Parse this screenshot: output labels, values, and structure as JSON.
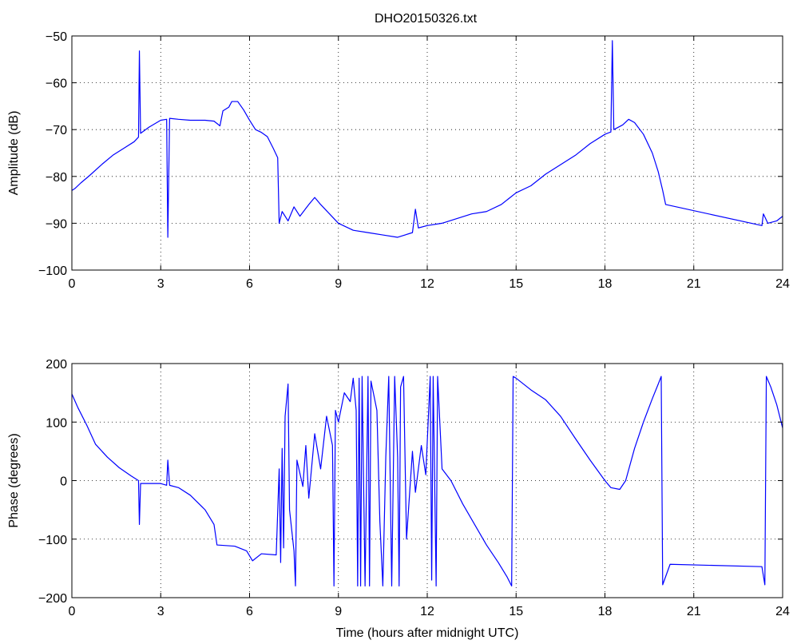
{
  "figure": {
    "title": "DHO20150326.txt",
    "line_color": "#0000ff"
  },
  "chart_data": [
    {
      "type": "line",
      "title": "DHO20150326.txt",
      "xlabel": "",
      "ylabel": "Amplitude (dB)",
      "xlim": [
        0,
        24
      ],
      "ylim": [
        -100,
        -50
      ],
      "xticks": [
        0,
        3,
        6,
        9,
        12,
        15,
        18,
        21,
        24
      ],
      "yticks": [
        -100,
        -90,
        -80,
        -70,
        -60,
        -50
      ],
      "grid": true,
      "series": [
        {
          "points": [
            [
              0,
              -83.0
            ],
            [
              0.1,
              -82.6
            ],
            [
              0.3,
              -81.4
            ],
            [
              0.6,
              -79.8
            ],
            [
              1.0,
              -77.5
            ],
            [
              1.4,
              -75.4
            ],
            [
              1.8,
              -73.8
            ],
            [
              2.1,
              -72.6
            ],
            [
              2.25,
              -71.6
            ],
            [
              2.28,
              -53.2
            ],
            [
              2.32,
              -70.8
            ],
            [
              2.6,
              -69.5
            ],
            [
              3.0,
              -68.0
            ],
            [
              3.2,
              -67.8
            ],
            [
              3.24,
              -93.0
            ],
            [
              3.3,
              -67.6
            ],
            [
              3.6,
              -67.8
            ],
            [
              4.0,
              -68.0
            ],
            [
              4.5,
              -68.0
            ],
            [
              4.8,
              -68.2
            ],
            [
              5.0,
              -69.2
            ],
            [
              5.1,
              -66.0
            ],
            [
              5.3,
              -65.2
            ],
            [
              5.4,
              -64.0
            ],
            [
              5.6,
              -64.0
            ],
            [
              5.8,
              -65.8
            ],
            [
              6.0,
              -68.0
            ],
            [
              6.2,
              -70.0
            ],
            [
              6.4,
              -70.6
            ],
            [
              6.6,
              -71.5
            ],
            [
              6.8,
              -74.0
            ],
            [
              6.95,
              -76.0
            ],
            [
              7.0,
              -90.0
            ],
            [
              7.1,
              -87.5
            ],
            [
              7.3,
              -89.5
            ],
            [
              7.5,
              -86.5
            ],
            [
              7.7,
              -88.5
            ],
            [
              8.0,
              -86.0
            ],
            [
              8.2,
              -84.5
            ],
            [
              8.4,
              -86.0
            ],
            [
              8.7,
              -88.0
            ],
            [
              9.0,
              -90.0
            ],
            [
              9.5,
              -91.5
            ],
            [
              10.0,
              -92.0
            ],
            [
              10.5,
              -92.5
            ],
            [
              11.0,
              -93.0
            ],
            [
              11.5,
              -92.0
            ],
            [
              11.6,
              -87.0
            ],
            [
              11.7,
              -91.0
            ],
            [
              12.0,
              -90.5
            ],
            [
              12.5,
              -90.0
            ],
            [
              13.0,
              -89.0
            ],
            [
              13.5,
              -88.0
            ],
            [
              14.0,
              -87.5
            ],
            [
              14.5,
              -86.0
            ],
            [
              15.0,
              -83.5
            ],
            [
              15.5,
              -82.0
            ],
            [
              16.0,
              -79.5
            ],
            [
              16.5,
              -77.5
            ],
            [
              17.0,
              -75.5
            ],
            [
              17.5,
              -73.0
            ],
            [
              18.0,
              -71.0
            ],
            [
              18.2,
              -70.5
            ],
            [
              18.25,
              -51.0
            ],
            [
              18.3,
              -70.0
            ],
            [
              18.6,
              -69.0
            ],
            [
              18.8,
              -67.8
            ],
            [
              19.0,
              -68.5
            ],
            [
              19.3,
              -71.0
            ],
            [
              19.6,
              -75.0
            ],
            [
              19.8,
              -79.0
            ],
            [
              19.95,
              -83.0
            ],
            [
              20.05,
              -86.0
            ],
            [
              23.3,
              -90.5
            ],
            [
              23.35,
              -88.0
            ],
            [
              23.5,
              -90.0
            ],
            [
              23.8,
              -89.5
            ],
            [
              24.0,
              -88.5
            ]
          ]
        }
      ]
    },
    {
      "type": "line",
      "title": "",
      "xlabel": "Time (hours after midnight UTC)",
      "ylabel": "Phase (degrees)",
      "xlim": [
        0,
        24
      ],
      "ylim": [
        -200,
        200
      ],
      "xticks": [
        0,
        3,
        6,
        9,
        12,
        15,
        18,
        21,
        24
      ],
      "yticks": [
        -200,
        -100,
        0,
        100,
        200
      ],
      "grid": true,
      "series": [
        {
          "points": [
            [
              0,
              148
            ],
            [
              0.2,
              125
            ],
            [
              0.5,
              95
            ],
            [
              0.8,
              62
            ],
            [
              1.2,
              40
            ],
            [
              1.6,
              22
            ],
            [
              2.0,
              8
            ],
            [
              2.25,
              0
            ],
            [
              2.28,
              -75
            ],
            [
              2.32,
              -5
            ],
            [
              2.6,
              -5
            ],
            [
              3.0,
              -5
            ],
            [
              3.2,
              -8
            ],
            [
              3.24,
              35
            ],
            [
              3.3,
              -8
            ],
            [
              3.6,
              -12
            ],
            [
              4.0,
              -25
            ],
            [
              4.5,
              -50
            ],
            [
              4.8,
              -75
            ],
            [
              4.9,
              -110
            ],
            [
              5.5,
              -112
            ],
            [
              5.9,
              -120
            ],
            [
              6.1,
              -137
            ],
            [
              6.4,
              -125
            ],
            [
              6.9,
              -127
            ],
            [
              7.0,
              20
            ],
            [
              7.05,
              -140
            ],
            [
              7.1,
              55
            ],
            [
              7.15,
              -115
            ],
            [
              7.2,
              110
            ],
            [
              7.3,
              165
            ],
            [
              7.35,
              -50
            ],
            [
              7.5,
              -120
            ],
            [
              7.55,
              -180
            ],
            [
              7.6,
              35
            ],
            [
              7.8,
              -10
            ],
            [
              7.9,
              60
            ],
            [
              8.0,
              -30
            ],
            [
              8.2,
              80
            ],
            [
              8.4,
              20
            ],
            [
              8.6,
              110
            ],
            [
              8.8,
              60
            ],
            [
              8.85,
              -180
            ],
            [
              8.9,
              120
            ],
            [
              9.0,
              100
            ],
            [
              9.2,
              150
            ],
            [
              9.4,
              135
            ],
            [
              9.5,
              175
            ],
            [
              9.6,
              120
            ],
            [
              9.65,
              -180
            ],
            [
              9.7,
              175
            ],
            [
              9.75,
              -180
            ],
            [
              9.8,
              178
            ],
            [
              9.9,
              -180
            ],
            [
              10.0,
              178
            ],
            [
              10.05,
              -180
            ],
            [
              10.1,
              170
            ],
            [
              10.3,
              120
            ],
            [
              10.4,
              -70
            ],
            [
              10.5,
              -180
            ],
            [
              10.6,
              40
            ],
            [
              10.7,
              178
            ],
            [
              10.8,
              -180
            ],
            [
              10.9,
              178
            ],
            [
              11.0,
              40
            ],
            [
              11.05,
              -180
            ],
            [
              11.1,
              160
            ],
            [
              11.2,
              178
            ],
            [
              11.3,
              -100
            ],
            [
              11.5,
              50
            ],
            [
              11.6,
              -20
            ],
            [
              11.8,
              60
            ],
            [
              11.95,
              10
            ],
            [
              12.1,
              178
            ],
            [
              12.15,
              -170
            ],
            [
              12.2,
              178
            ],
            [
              12.3,
              -180
            ],
            [
              12.35,
              178
            ],
            [
              12.5,
              20
            ],
            [
              12.8,
              0
            ],
            [
              13.2,
              -40
            ],
            [
              13.6,
              -75
            ],
            [
              14.0,
              -110
            ],
            [
              14.4,
              -140
            ],
            [
              14.7,
              -165
            ],
            [
              14.85,
              -180
            ],
            [
              14.9,
              178
            ],
            [
              15.0,
              175
            ],
            [
              15.5,
              155
            ],
            [
              16.0,
              138
            ],
            [
              16.5,
              110
            ],
            [
              17.0,
              72
            ],
            [
              17.5,
              35
            ],
            [
              18.0,
              0
            ],
            [
              18.2,
              -12
            ],
            [
              18.5,
              -15
            ],
            [
              18.7,
              0
            ],
            [
              19.0,
              55
            ],
            [
              19.3,
              100
            ],
            [
              19.6,
              140
            ],
            [
              19.8,
              165
            ],
            [
              19.9,
              178
            ],
            [
              19.95,
              -178
            ],
            [
              20.2,
              -143
            ],
            [
              23.3,
              -147
            ],
            [
              23.4,
              -178
            ],
            [
              23.45,
              178
            ],
            [
              23.6,
              160
            ],
            [
              23.8,
              130
            ],
            [
              24.0,
              90
            ]
          ]
        }
      ]
    }
  ]
}
